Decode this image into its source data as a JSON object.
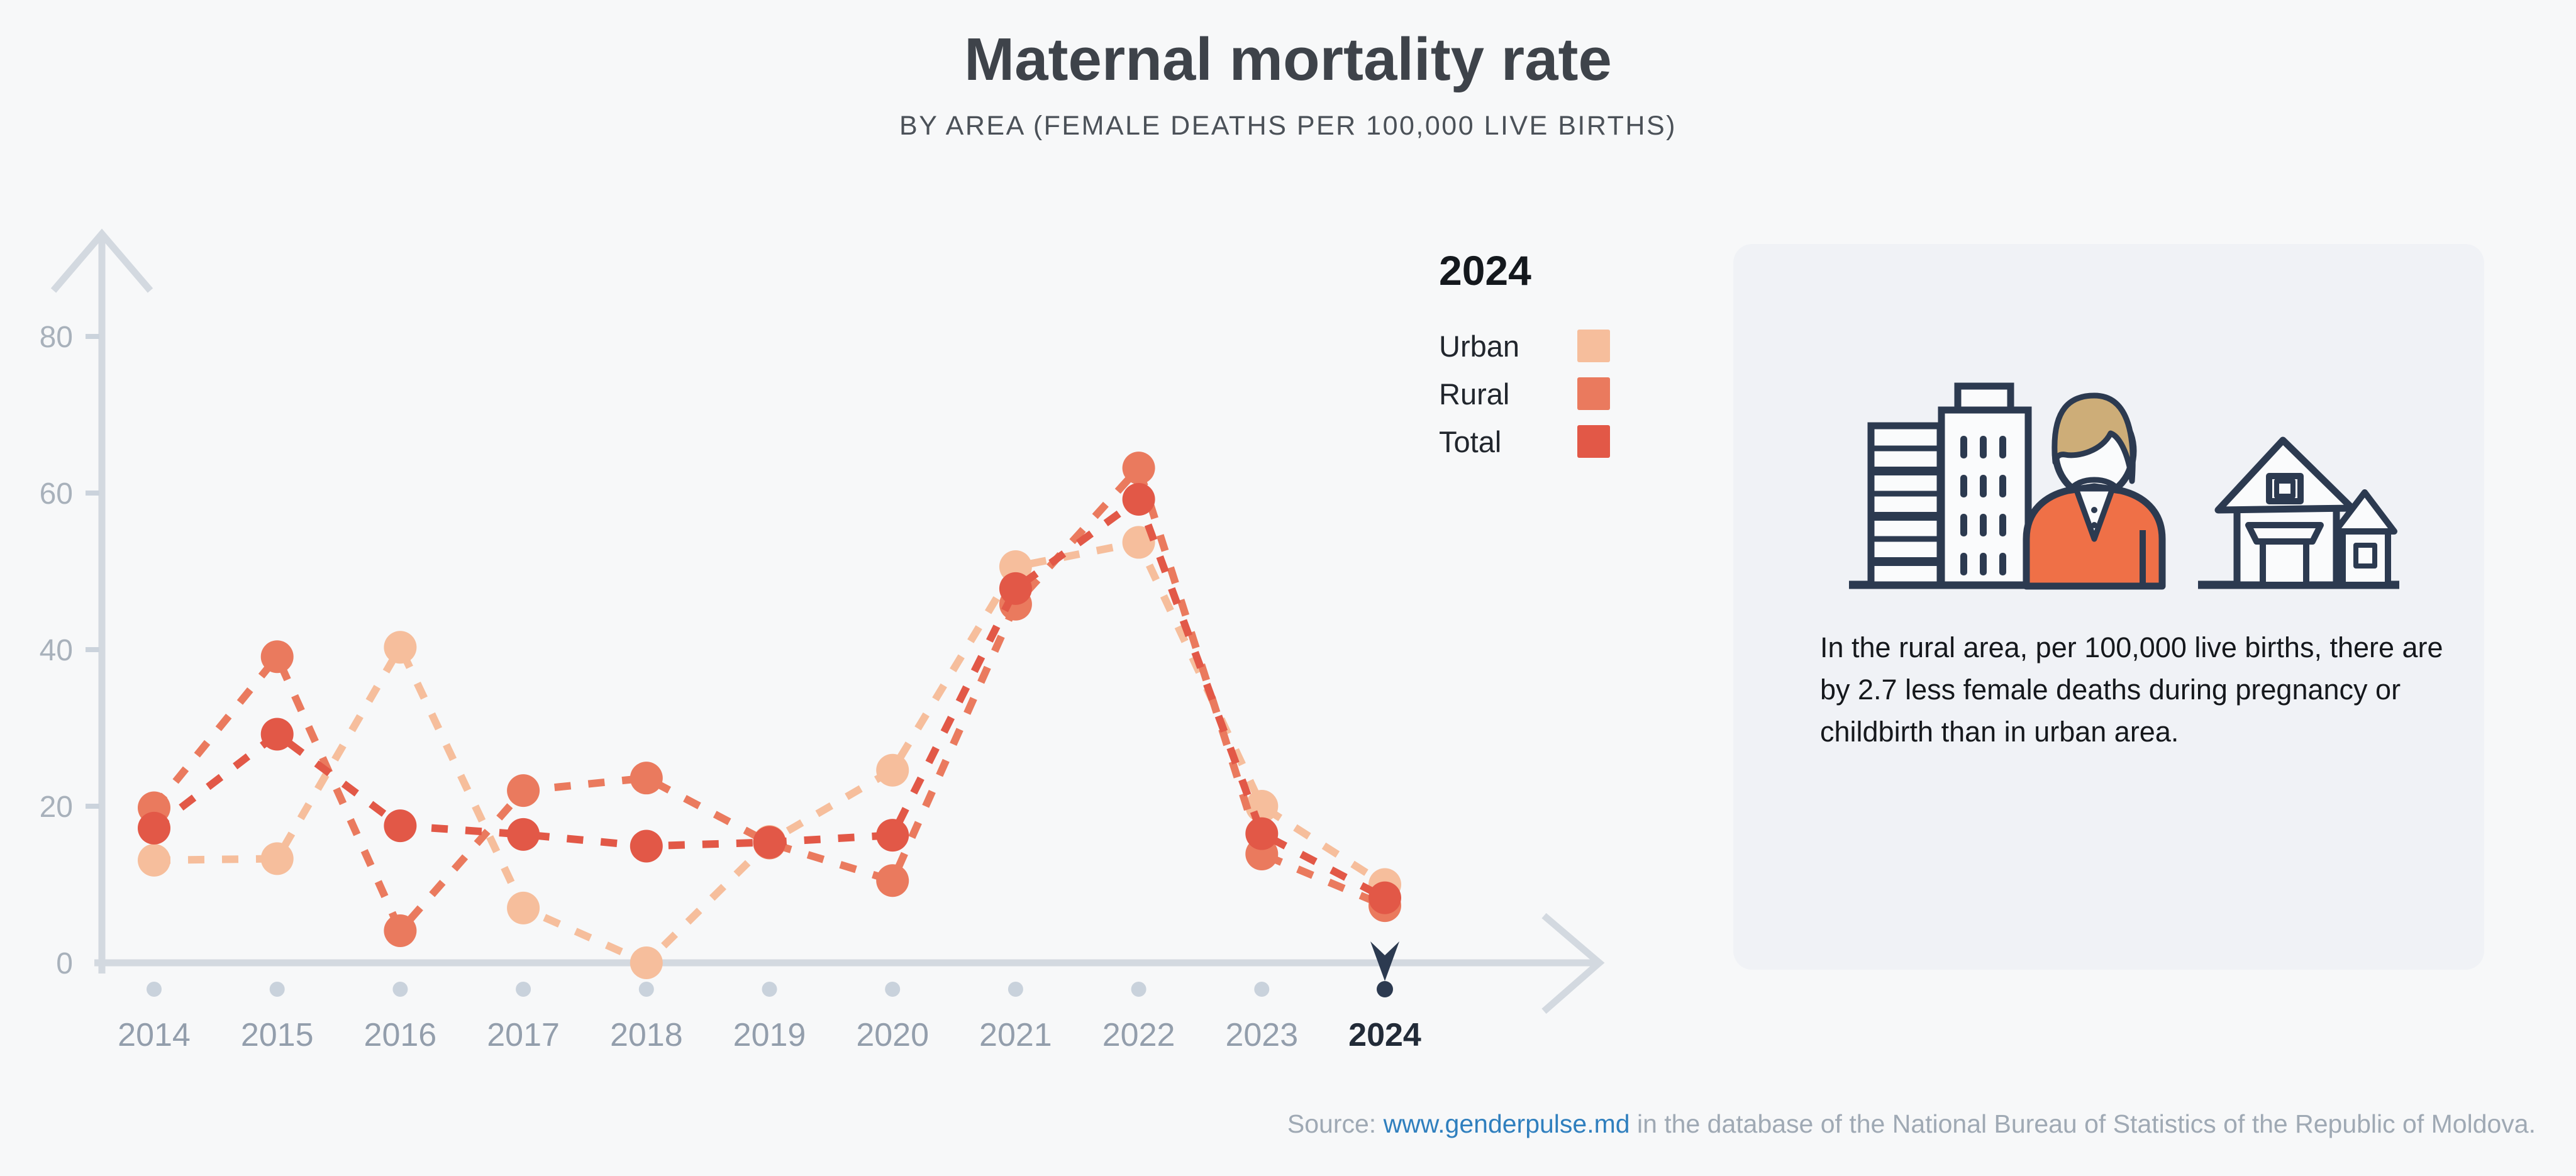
{
  "title": "Maternal mortality rate",
  "subtitle": "BY AREA (FEMALE DEATHS PER 100,000 LIVE BIRTHS)",
  "legend": {
    "title": "2024"
  },
  "panel": {
    "text": "In the rural area, per 100,000 live births, there are by 2.7 less female deaths during pregnancy or childbirth than in urban area.",
    "icons": [
      "city-buildings-icon",
      "woman-icon",
      "village-houses-icon"
    ]
  },
  "source": {
    "prefix": "Source: ",
    "link_text": "www.genderpulse.md",
    "suffix": " in the database of the National Bureau of Statistics of the Republic of Moldova."
  },
  "colors": {
    "background": "#F7F8F9",
    "panel_background": "#F0F2F6",
    "axis": "#D3D9E0",
    "tick": "#CBD3DC",
    "y_label": "#A8B1BB",
    "x_label": "#939EAC",
    "selected_navy": "#2C3A50",
    "urban": "#F6BE9C",
    "rural": "#EA7A5E",
    "total": "#E25847",
    "link_blue": "#2F7FBE",
    "hair_tan": "#CDAD78",
    "jacket_orange": "#EF7047"
  },
  "chart_data": {
    "type": "line",
    "title": "Maternal mortality rate",
    "subtitle": "BY AREA (FEMALE DEATHS PER 100,000 LIVE BIRTHS)",
    "x": [
      2014,
      2015,
      2016,
      2017,
      2018,
      2019,
      2020,
      2021,
      2022,
      2023,
      2024
    ],
    "series": [
      {
        "name": "Urban",
        "color": "#F6BE9C",
        "values": [
          13.1,
          13.3,
          40.3,
          7.0,
          0.0,
          15.5,
          24.6,
          50.6,
          53.7,
          20.0,
          10.0
        ]
      },
      {
        "name": "Rural",
        "color": "#EA7A5E",
        "values": [
          19.8,
          39.1,
          4.1,
          22.0,
          23.6,
          15.3,
          10.5,
          45.8,
          63.2,
          13.9,
          7.3
        ]
      },
      {
        "name": "Total",
        "color": "#E25847",
        "values": [
          17.2,
          29.2,
          17.5,
          16.4,
          14.9,
          15.4,
          16.3,
          47.8,
          59.2,
          16.5,
          8.3
        ]
      }
    ],
    "xlabel": "",
    "ylabel": "",
    "ylim": [
      0,
      88
    ],
    "yticks": [
      0,
      20,
      40,
      60,
      80
    ],
    "grid": false,
    "line_style": "dashed",
    "legend_position": "right",
    "highlight_year": 2024
  }
}
